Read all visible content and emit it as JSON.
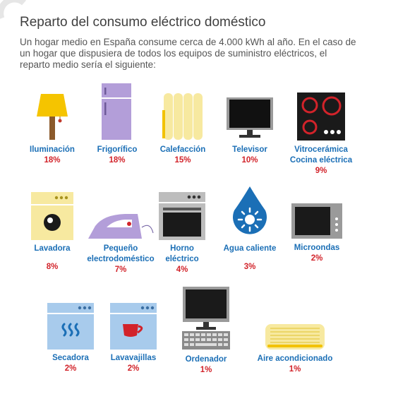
{
  "title": "Reparto del consumo eléctrico doméstico",
  "intro": {
    "line1": "Un hogar medio en España consume cerca de 4.000 kWh al año. En el caso de",
    "line2": "un hogar que dispusiera de todos los equipos de suministro eléctricos, el",
    "line3": "reparto medio sería el siguiente:"
  },
  "colors": {
    "label": "#1b6fb6",
    "percent": "#d2232a",
    "title": "#3f3f3f",
    "body_text": "#555555"
  },
  "items": [
    {
      "icon": "lamp-icon",
      "label": "Iluminación",
      "percent": "18%"
    },
    {
      "icon": "fridge-icon",
      "label": "Frigorífico",
      "percent": "18%"
    },
    {
      "icon": "radiator-icon",
      "label": "Calefacción",
      "percent": "15%"
    },
    {
      "icon": "tv-icon",
      "label": "Televisor",
      "percent": "10%"
    },
    {
      "icon": "cooktop-icon",
      "label_line1": "Vitrocerámica",
      "label_line2": "Cocina eléctrica",
      "percent": "9%"
    },
    {
      "icon": "washing-machine-icon",
      "label": "Lavadora",
      "percent": "8%"
    },
    {
      "icon": "iron-icon",
      "label_line1": "Pequeño",
      "label_line2": "electrodoméstico",
      "percent": "7%"
    },
    {
      "icon": "oven-icon",
      "label_line1": "Horno",
      "label_line2": "eléctrico",
      "percent": "4%"
    },
    {
      "icon": "water-drop-sun-icon",
      "label": "Agua caliente",
      "percent": "3%"
    },
    {
      "icon": "microwave-icon",
      "label": "Microondas",
      "percent": "2%"
    },
    {
      "icon": "dryer-icon",
      "label": "Secadora",
      "percent": "2%"
    },
    {
      "icon": "dishwasher-icon",
      "label": "Lavavajillas",
      "percent": "2%"
    },
    {
      "icon": "computer-icon",
      "label": "Ordenador",
      "percent": "1%"
    },
    {
      "icon": "air-conditioner-icon",
      "label": "Aire acondicionado",
      "percent": "1%"
    }
  ]
}
